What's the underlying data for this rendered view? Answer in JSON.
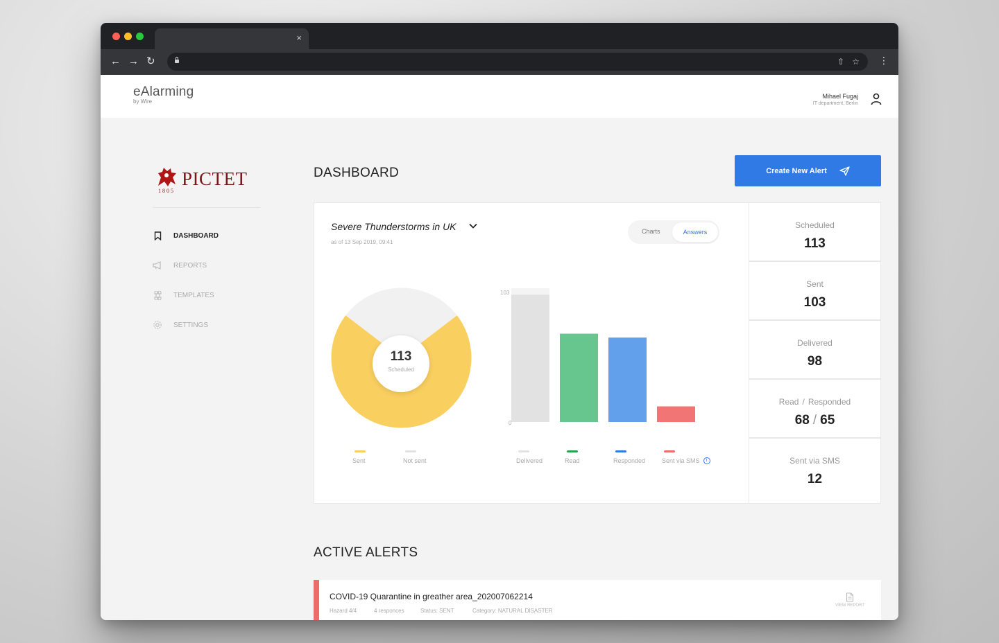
{
  "browser": {
    "tab_close": "×",
    "nav_back": "←",
    "nav_forward": "→",
    "nav_reload": "↻",
    "share": "⇧",
    "star": "☆",
    "menu": "⋮"
  },
  "header": {
    "app_name": "eAlarming",
    "app_sub": "by Wire",
    "user_name": "Mihael Fugaj",
    "user_dept": "IT department, Berlin"
  },
  "sidebar": {
    "logo_text": "PICTET",
    "logo_year": "1805",
    "items": [
      {
        "label": "DASHBOARD",
        "icon": "bookmark-icon"
      },
      {
        "label": "REPORTS",
        "icon": "megaphone-icon"
      },
      {
        "label": "TEMPLATES",
        "icon": "command-icon"
      },
      {
        "label": "SETTINGS",
        "icon": "gear-icon"
      }
    ]
  },
  "main": {
    "title": "DASHBOARD",
    "create_button": "Create New Alert"
  },
  "alert_card": {
    "title": "Severe Thunderstorms in UK",
    "date": "as of 13 Sep 2019, 09:41",
    "toggle": {
      "charts": "Charts",
      "answers": "Answers"
    },
    "donut_value": "113",
    "donut_label": "Scheduled",
    "donut_legend": [
      {
        "label": "Sent",
        "color": "#f9cf60"
      },
      {
        "label": "Not sent",
        "color": "#e2e2e2"
      }
    ],
    "bar_axis": {
      "top": "103",
      "bottom": "0"
    },
    "bar_legend": [
      {
        "label": "Delivered",
        "color": "#e2e2e2"
      },
      {
        "label": "Read",
        "color": "#27a356"
      },
      {
        "label": "Responded",
        "color": "#2f7ae5"
      },
      {
        "label": "Sent via SMS",
        "color": "#ee6b6b"
      }
    ],
    "info_icon": "i"
  },
  "chart_data": [
    {
      "type": "pie",
      "categories": [
        "Sent",
        "Not sent"
      ],
      "values": [
        103,
        10
      ],
      "title": "",
      "center_value": 113,
      "center_label": "Scheduled"
    },
    {
      "type": "bar",
      "categories": [
        "Delivered",
        "Read",
        "Responded",
        "Sent via SMS"
      ],
      "values": [
        98,
        68,
        65,
        12
      ],
      "background_max": 103,
      "ylim": [
        0,
        103
      ],
      "colors": [
        "#e2e2e2",
        "#66c68d",
        "#62a0ec",
        "#f17575"
      ]
    }
  ],
  "stats": [
    {
      "label": "Scheduled",
      "value": "113"
    },
    {
      "label": "Sent",
      "value": "103"
    },
    {
      "label": "Delivered",
      "value": "98"
    },
    {
      "label_a": "Read",
      "label_b": "Responded",
      "value_a": "68",
      "value_b": "65",
      "sep": "/"
    },
    {
      "label": "Sent via SMS",
      "value": "12"
    }
  ],
  "active_alerts": {
    "title": "ACTIVE ALERTS",
    "items": [
      {
        "title": "COVID-19 Quarantine in greather area_202007062214",
        "hazard": "Hazard 4/4",
        "responses": "4 responces",
        "status": "Status: SENT",
        "category": "Category: NATURAL DISASTER",
        "action": "VIEW REPORT",
        "color": "#ee6b6b"
      }
    ]
  }
}
